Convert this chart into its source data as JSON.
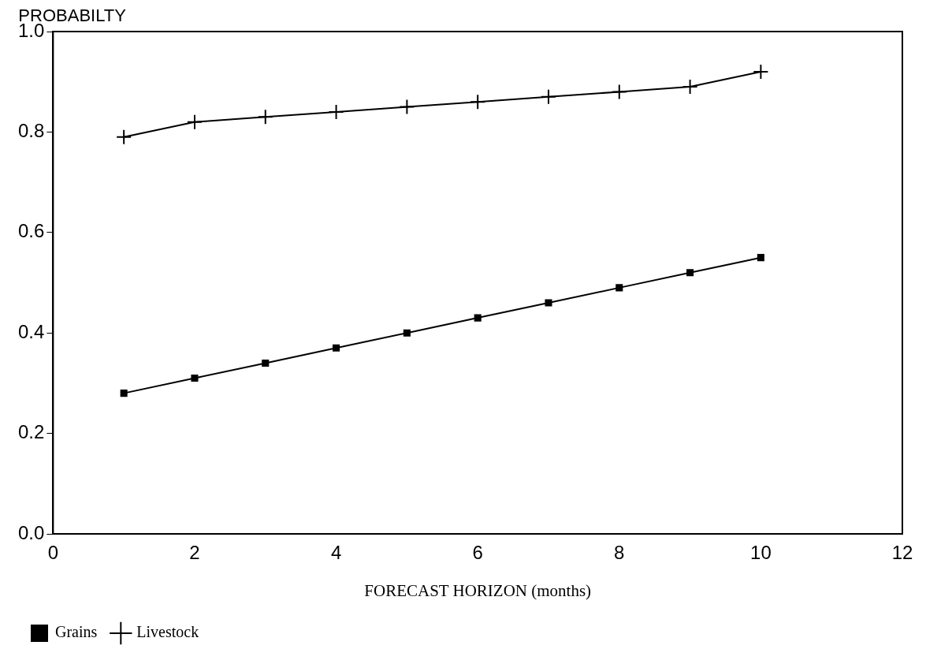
{
  "chart_data": {
    "type": "line",
    "xlabel": "FORECAST HORIZON (months)",
    "ylabel": "PROBABILTY",
    "x": [
      1,
      2,
      3,
      4,
      5,
      6,
      7,
      8,
      9,
      10
    ],
    "series": [
      {
        "name": "Grains",
        "color": "#000000",
        "marker": "square",
        "values": [
          0.28,
          0.31,
          0.34,
          0.37,
          0.4,
          0.43,
          0.46,
          0.49,
          0.52,
          0.55
        ]
      },
      {
        "name": "Livestock",
        "color": "#000000",
        "marker": "cross",
        "values": [
          0.79,
          0.82,
          0.83,
          0.84,
          0.85,
          0.86,
          0.87,
          0.88,
          0.89,
          0.92
        ]
      }
    ],
    "xlim": [
      0,
      12
    ],
    "xticks": [
      0,
      2,
      4,
      6,
      8,
      10,
      12
    ],
    "ylim": [
      0,
      1
    ],
    "yticks": [
      {
        "value": 0,
        "label": "0.0"
      },
      0.2,
      0.4,
      0.6,
      0.8,
      {
        "value": 1,
        "label": "1.0"
      }
    ],
    "grid": false,
    "legend": "bottom left",
    "line_style": "solid"
  }
}
